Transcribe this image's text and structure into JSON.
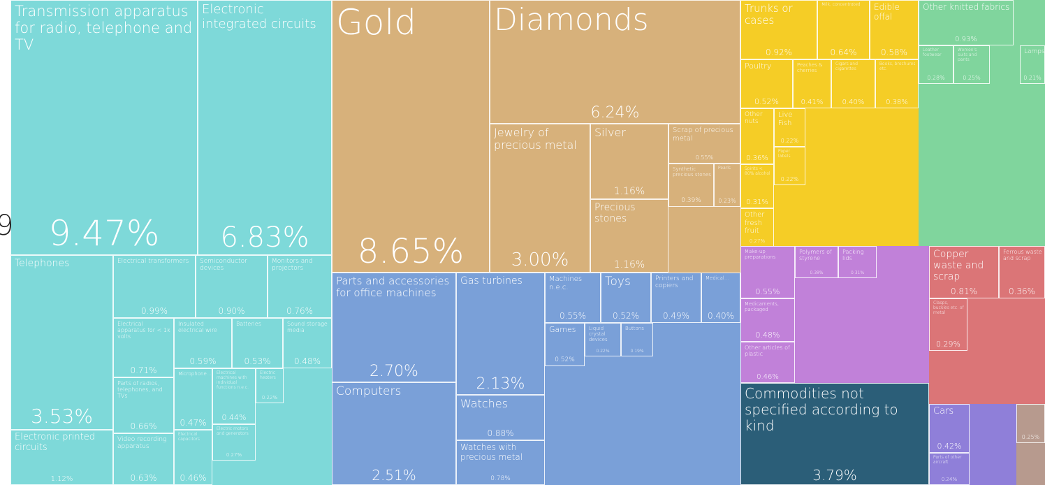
{
  "chart_data": {
    "type": "treemap",
    "annotation": "9",
    "categories": [
      "Transmission apparatus for radio, telephone and TV",
      "Electronic integrated circuits",
      "Telephones",
      "Electronic printed circuits",
      "Electrical transformers",
      "Semiconductor devices",
      "Monitors and projectors",
      "Electrical apparatus for < 1k volts",
      "Insulated electrical wire",
      "Batteries",
      "Sound storage media",
      "Parts of radios, telephones, and TVs",
      "Video recording apparatus",
      "Microphone...",
      "Electrical machines with individual functions n.e.c.",
      "Electric heaters",
      "Electric motors and generators",
      "Electrical capacitors",
      "Gold",
      "Diamonds",
      "Jewelry of precious metal",
      "Silver",
      "Precious stones",
      "Scrap of precious metal",
      "Synthetic precious stones",
      "Pearls",
      "Parts and accessories for office machines",
      "Computers",
      "Gas turbines",
      "Watches",
      "Watches with precious metal",
      "Machines n.e.c.",
      "Toys",
      "Printers and copiers",
      "Medical...",
      "Games",
      "Liquid crystal devices",
      "Buttons",
      "Trunks or cases",
      "Milk, concentrated",
      "Edible offal",
      "Poultry",
      "Peaches & cherries",
      "Cigars and cigarettes",
      "Books, brochures etc.",
      "Other nuts",
      "Live Fish",
      "Spirits < 80% alcohol",
      "Other fresh fruit",
      "Paper labels",
      "Other knitted fabrics",
      "Leather footwear",
      "Women's suits and pants",
      "Lamps",
      "Make-up preparations",
      "Medicaments, packaged",
      "Other articles of plastic",
      "Polymers of styrene",
      "Packing lids",
      "Copper waste and scrap",
      "Ferrous waste and scrap",
      "Clasps, buckles etc. of metal",
      "Commodities not specified according to kind",
      "Cars",
      "Parts of other aircraft",
      null
    ],
    "values": [
      9.47,
      6.83,
      3.53,
      1.12,
      0.99,
      0.9,
      0.76,
      0.71,
      0.59,
      0.53,
      0.48,
      0.66,
      0.63,
      0.47,
      0.44,
      0.22,
      0.27,
      0.46,
      8.65,
      6.24,
      3.0,
      1.16,
      1.16,
      0.55,
      0.39,
      0.23,
      2.7,
      2.51,
      2.13,
      0.88,
      0.78,
      0.55,
      0.52,
      0.49,
      0.4,
      0.52,
      0.22,
      0.19,
      0.92,
      0.64,
      0.58,
      0.52,
      0.41,
      0.4,
      0.38,
      0.36,
      0.22,
      0.31,
      0.27,
      0.22,
      0.93,
      0.28,
      0.25,
      0.21,
      0.55,
      0.48,
      0.46,
      0.38,
      0.31,
      0.81,
      0.36,
      0.29,
      3.79,
      0.42,
      0.24,
      0.25
    ],
    "value_labels": [
      "9.47%",
      "6.83%",
      "3.53%",
      "1.12%",
      "0.99%",
      "0.90%",
      "0.76%",
      "0.71%",
      "0.59%",
      "0.53%",
      "0.48%",
      "0.66%",
      "0.63%",
      "0.47%",
      "0.44%",
      "0.22%",
      "0.27%",
      "0.46%",
      "8.65%",
      "6.24%",
      "3.00%",
      "1.16%",
      "1.16%",
      "0.55%",
      "0.39%",
      "0.23%",
      "2.70%",
      "2.51%",
      "2.13%",
      "0.88%",
      "0.78%",
      "0.55%",
      "0.52%",
      "0.49%",
      "0.40%",
      "0.52%",
      "0.22%",
      "0.19%",
      "0.92%",
      "0.64%",
      "0.58%",
      "0.52%",
      "0.41%",
      "0.40%",
      "0.38%",
      "0.36%",
      "0.22%",
      "0.31%",
      "0.27%",
      "0.22%",
      "0.93%",
      "0.28%",
      "0.25%",
      "0.21%",
      "0.55%",
      "0.48%",
      "0.46%",
      "0.38%",
      "0.31%",
      "0.81%",
      "0.36%",
      "0.29%",
      "3.79%",
      "0.42%",
      "0.24%",
      "0.25%"
    ],
    "colors": [
      "#7ed9d9",
      "#7ed9d9",
      "#7ed9d9",
      "#7ed9d9",
      "#7ed9d9",
      "#7ed9d9",
      "#7ed9d9",
      "#7ed9d9",
      "#7ed9d9",
      "#7ed9d9",
      "#7ed9d9",
      "#7ed9d9",
      "#7ed9d9",
      "#7ed9d9",
      "#7ed9d9",
      "#7ed9d9",
      "#7ed9d9",
      "#7ed9d9",
      "#d7b17b",
      "#d7b17b",
      "#d7b17b",
      "#d7b17b",
      "#d7b17b",
      "#d7b17b",
      "#d7b17b",
      "#d7b17b",
      "#7aa0d8",
      "#7aa0d8",
      "#7aa0d8",
      "#7aa0d8",
      "#7aa0d8",
      "#7aa0d8",
      "#7aa0d8",
      "#7aa0d8",
      "#7aa0d8",
      "#7aa0d8",
      "#7aa0d8",
      "#7aa0d8",
      "#f5cd26",
      "#f5cd26",
      "#f5cd26",
      "#f5cd26",
      "#f5cd26",
      "#f5cd26",
      "#f5cd26",
      "#f5cd26",
      "#f5cd26",
      "#f5cd26",
      "#f5cd26",
      "#f5cd26",
      "#80d59d",
      "#80d59d",
      "#80d59d",
      "#80d59d",
      "#c181d9",
      "#c181d9",
      "#c181d9",
      "#c181d9",
      "#c181d9",
      "#db7577",
      "#db7577",
      "#db7577",
      "#2b5e78",
      "#8f7fd9",
      "#8f7fd9",
      "#b79a8e"
    ]
  }
}
